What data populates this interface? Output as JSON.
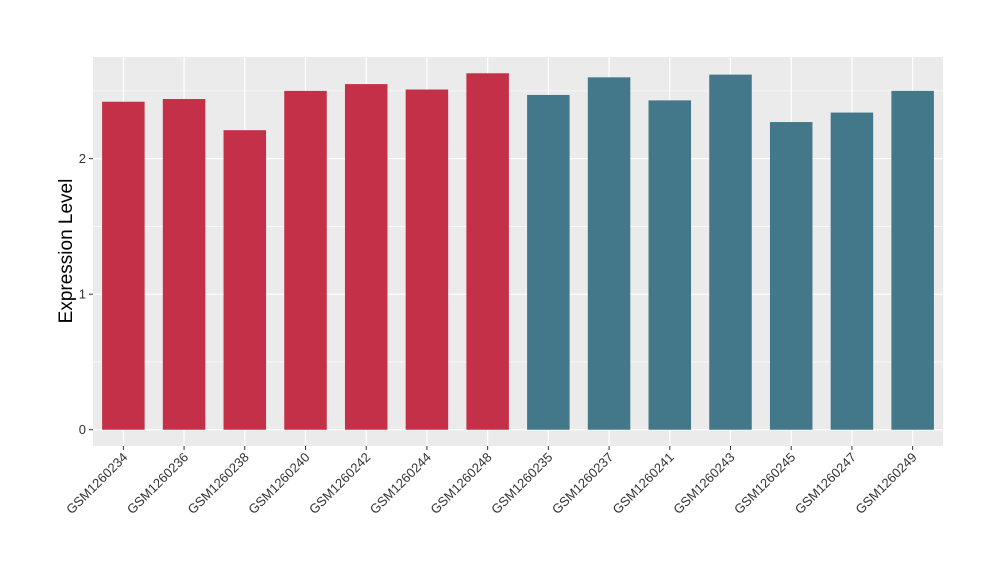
{
  "chart_data": {
    "type": "bar",
    "title": "",
    "xlabel": "",
    "ylabel": "Expression Level",
    "ylim": [
      -0.12,
      2.75
    ],
    "yticks": [
      0,
      1,
      2
    ],
    "grid": true,
    "legend": "none",
    "categories": [
      "GSM1260234",
      "GSM1260236",
      "GSM1260238",
      "GSM1260240",
      "GSM1260242",
      "GSM1260244",
      "GSM1260248",
      "GSM1260235",
      "GSM1260237",
      "GSM1260241",
      "GSM1260243",
      "GSM1260245",
      "GSM1260247",
      "GSM1260249"
    ],
    "values": [
      2.42,
      2.44,
      2.21,
      2.5,
      2.55,
      2.51,
      2.63,
      2.47,
      2.6,
      2.43,
      2.62,
      2.27,
      2.34,
      2.5
    ],
    "groups": [
      0,
      0,
      0,
      0,
      0,
      0,
      0,
      1,
      1,
      1,
      1,
      1,
      1,
      1
    ],
    "group_colors": [
      "#c33047",
      "#427889"
    ],
    "panel_background": "#ebebeb",
    "grid_color": "#ffffff"
  }
}
